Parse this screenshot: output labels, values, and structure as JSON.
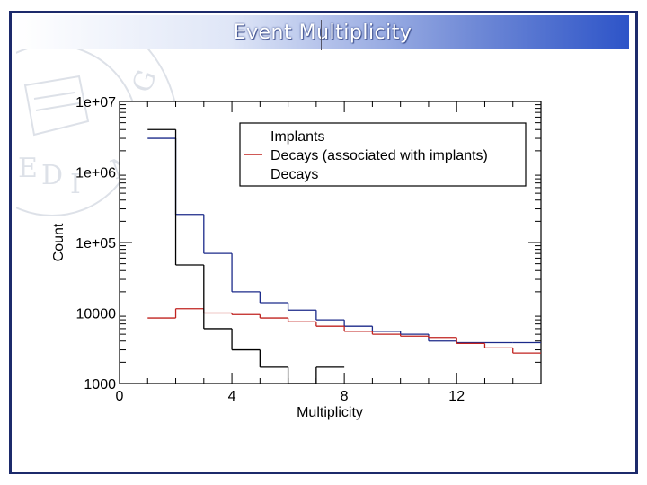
{
  "slide": {
    "title": "Event Multiplicity"
  },
  "chart_data": {
    "type": "line",
    "title": "",
    "xlabel": "Multiplicity",
    "ylabel": "Count",
    "xlim": [
      0,
      15
    ],
    "ylim": [
      1000,
      10000000
    ],
    "yscale": "log",
    "x_ticks": [
      0,
      4,
      8,
      12
    ],
    "y_ticks": [
      1000,
      10000,
      100000,
      1000000,
      10000000
    ],
    "y_tick_labels": [
      "1000",
      "10000",
      "1e+05",
      "1e+06",
      "1e+07"
    ],
    "legend_position": "top-right",
    "grid": false,
    "drawstyle": "steps",
    "series": [
      {
        "name": "Implants",
        "color": "#1b2a8a",
        "bin_edges": [
          1,
          2,
          3,
          4,
          5,
          6,
          7,
          8,
          9,
          10,
          11,
          12,
          13,
          14,
          15
        ],
        "values": [
          3000000,
          250000,
          70000,
          20000,
          14000,
          11000,
          8000,
          6500,
          5500,
          5000,
          4000,
          3800,
          3800,
          3800
        ]
      },
      {
        "name": "Decays (associated with implants)",
        "color": "#c0221f",
        "bin_edges": [
          1,
          2,
          3,
          4,
          5,
          6,
          7,
          8,
          9,
          10,
          11,
          12,
          13,
          14,
          15
        ],
        "values": [
          8500,
          11500,
          10000,
          9500,
          8500,
          7500,
          6500,
          5500,
          5000,
          4700,
          4500,
          3700,
          3200,
          2700
        ]
      },
      {
        "name": "Decays",
        "color": "#000000",
        "bin_edges": [
          1,
          2,
          3,
          4,
          5,
          6,
          7,
          8
        ],
        "values": [
          4000000,
          48000,
          6000,
          3000,
          1700,
          1000,
          1700
        ]
      }
    ]
  }
}
